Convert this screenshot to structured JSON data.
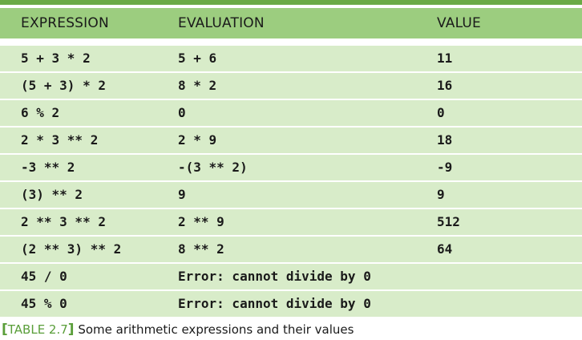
{
  "table": {
    "headers": [
      "EXPRESSION",
      "EVALUATION",
      "VALUE"
    ],
    "rows": [
      {
        "expression": "5 + 3 * 2",
        "evaluation": "5 + 6",
        "value": "11"
      },
      {
        "expression": "(5 + 3) * 2",
        "evaluation": "8 * 2",
        "value": "16"
      },
      {
        "expression": "6 % 2",
        "evaluation": "0",
        "value": "0"
      },
      {
        "expression": "2 * 3 ** 2",
        "evaluation": "2 * 9",
        "value": "18"
      },
      {
        "expression": "-3 ** 2",
        "evaluation": "-(3 ** 2)",
        "value": "-9"
      },
      {
        "expression": "(3) ** 2",
        "evaluation": "9",
        "value": "9"
      },
      {
        "expression": "2 ** 3 ** 2",
        "evaluation": "2 ** 9",
        "value": "512"
      },
      {
        "expression": "(2 ** 3) ** 2",
        "evaluation": "8 ** 2",
        "value": "64"
      },
      {
        "expression": "45 / 0",
        "evaluation": "Error: cannot divide by 0",
        "value": ""
      },
      {
        "expression": "45 % 0",
        "evaluation": "Error: cannot divide by 0",
        "value": ""
      }
    ]
  },
  "caption": {
    "open_bracket": "[",
    "label": "TABLE 2.7",
    "close_bracket": "]",
    "text": " Some arithmetic expressions and their values"
  },
  "colors": {
    "header_bg": "#9ccd7f",
    "row_bg": "#d8ecc9",
    "accent": "#5a9e3a",
    "top_rule": "#6aaa45"
  }
}
